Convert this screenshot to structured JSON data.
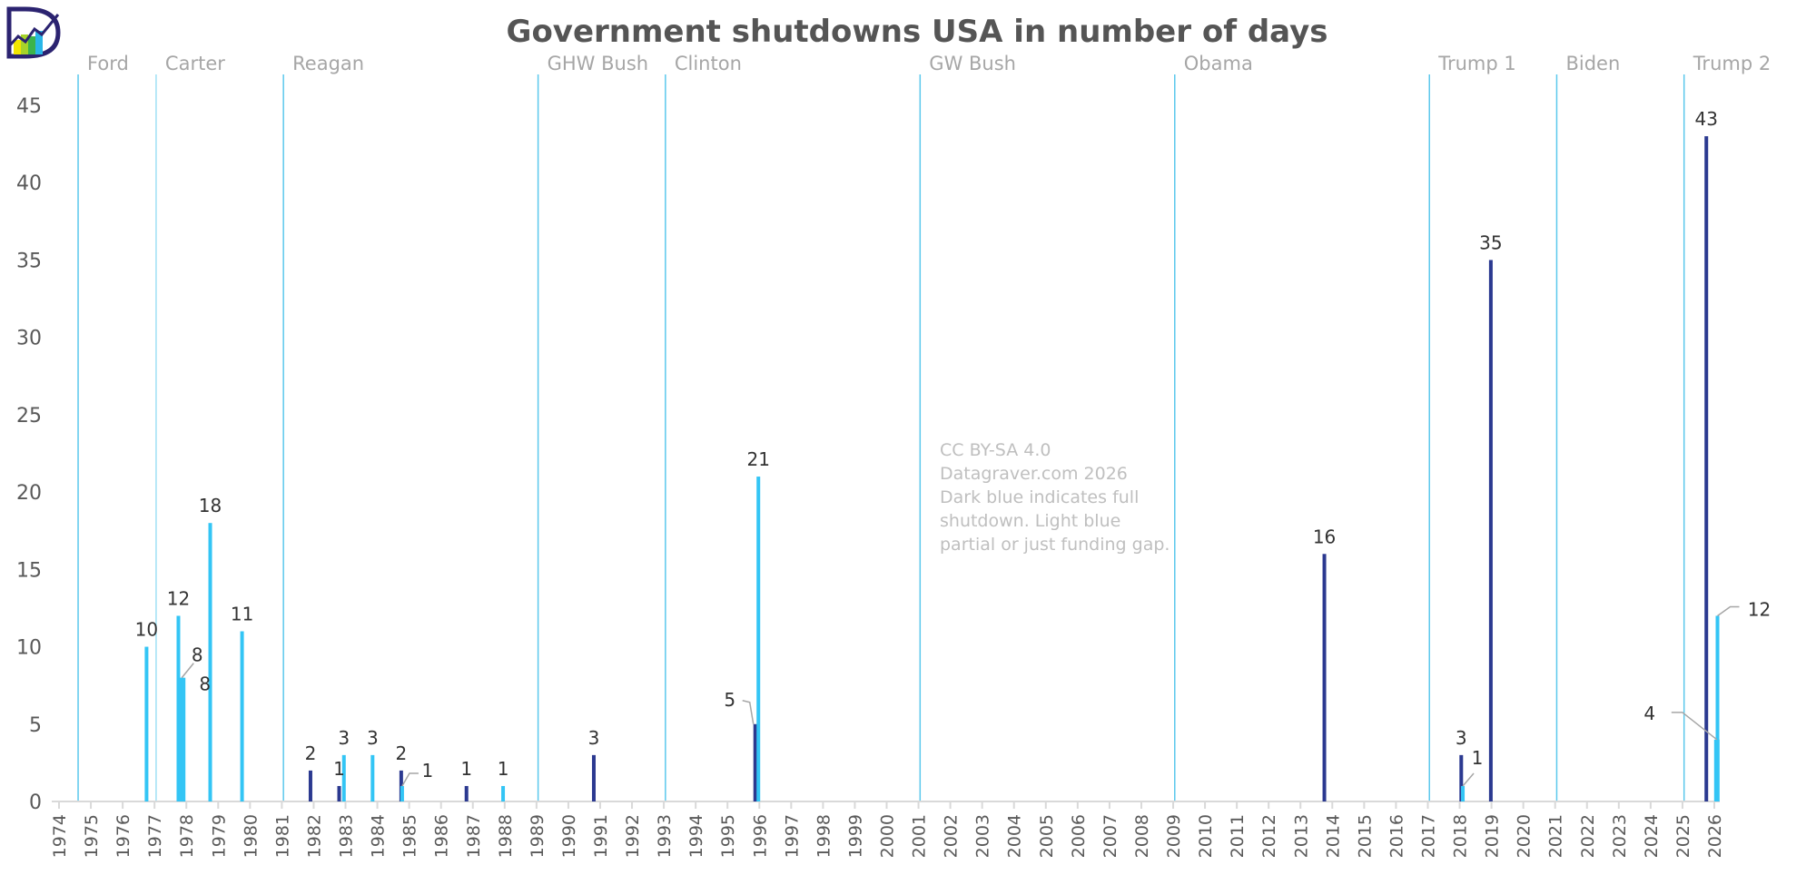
{
  "chart_data": {
    "type": "bar",
    "title": "Government shutdowns USA in number of days",
    "xlabel": "",
    "ylabel": "",
    "xlim": [
      1974,
      2026
    ],
    "ylim": [
      0,
      45
    ],
    "yticks": [
      0,
      5,
      10,
      15,
      20,
      25,
      30,
      35,
      40,
      45
    ],
    "xticks": [
      1974,
      1975,
      1976,
      1977,
      1978,
      1979,
      1980,
      1981,
      1982,
      1983,
      1984,
      1985,
      1986,
      1987,
      1988,
      1989,
      1990,
      1991,
      1992,
      1993,
      1994,
      1995,
      1996,
      1997,
      1998,
      1999,
      2000,
      2001,
      2002,
      2003,
      2004,
      2005,
      2006,
      2007,
      2008,
      2009,
      2010,
      2011,
      2012,
      2013,
      2014,
      2015,
      2016,
      2017,
      2018,
      2019,
      2020,
      2021,
      2022,
      2023,
      2024,
      2025,
      2026
    ],
    "grid": false,
    "colors": {
      "full": "#2b3990",
      "partial": "#33c5f5",
      "president_line": "#5bc8ec",
      "leader": "#a6a6a6"
    },
    "presidencies": [
      {
        "name": "Ford",
        "start": 1974.6
      },
      {
        "name": "Carter",
        "start": 1977.05
      },
      {
        "name": "Reagan",
        "start": 1981.05
      },
      {
        "name": "GHW Bush",
        "start": 1989.05
      },
      {
        "name": "Clinton",
        "start": 1993.05
      },
      {
        "name": "GW Bush",
        "start": 2001.05
      },
      {
        "name": "Obama",
        "start": 2009.05
      },
      {
        "name": "Trump 1",
        "start": 2017.05
      },
      {
        "name": "Biden",
        "start": 2021.05
      },
      {
        "name": "Trump 2",
        "start": 2025.05
      }
    ],
    "series": [
      {
        "name": "Full shutdown",
        "type": "full",
        "points": [
          {
            "x": 1981.9,
            "days": 2
          },
          {
            "x": 1982.8,
            "days": 1
          },
          {
            "x": 1984.75,
            "days": 2
          },
          {
            "x": 1986.8,
            "days": 1
          },
          {
            "x": 1990.8,
            "days": 3
          },
          {
            "x": 1995.87,
            "days": 5
          },
          {
            "x": 2013.75,
            "days": 16
          },
          {
            "x": 2018.05,
            "days": 3
          },
          {
            "x": 2018.98,
            "days": 35
          },
          {
            "x": 2025.75,
            "days": 43
          }
        ]
      },
      {
        "name": "Partial or funding gap",
        "type": "partial",
        "points": [
          {
            "x": 1976.75,
            "days": 10
          },
          {
            "x": 1977.75,
            "days": 12
          },
          {
            "x": 1977.83,
            "days": 8
          },
          {
            "x": 1977.9,
            "days": 8
          },
          {
            "x": 1978.75,
            "days": 18
          },
          {
            "x": 1979.75,
            "days": 11
          },
          {
            "x": 1982.95,
            "days": 3
          },
          {
            "x": 1983.85,
            "days": 3
          },
          {
            "x": 1984.78,
            "days": 1
          },
          {
            "x": 1987.95,
            "days": 1
          },
          {
            "x": 1995.97,
            "days": 21
          },
          {
            "x": 2018.1,
            "days": 1
          },
          {
            "x": 2026.08,
            "days": 4
          },
          {
            "x": 2026.1,
            "days": 12
          }
        ]
      }
    ],
    "annotation": [
      "CC BY-SA 4.0",
      "Datagraver.com 2026",
      "Dark blue indicates full",
      "shutdown. Light blue",
      "partial or just funding gap."
    ]
  }
}
